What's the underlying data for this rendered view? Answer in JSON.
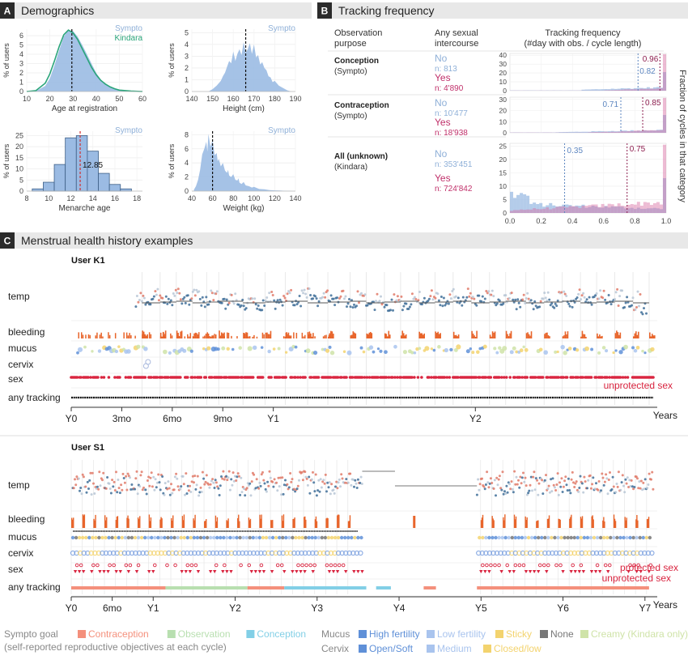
{
  "colors": {
    "sympto": "#8fb0d8",
    "kindara": "#2aa57a",
    "fill_blue": "#9bbbe3",
    "yes": "#c0306a",
    "no": "#8fb0d8",
    "bleed": "#e8652b",
    "temp_dark": "#3f6f99",
    "temp_light": "#b9c7d6",
    "temp_red": "#e07a68",
    "sex": "#d9243f",
    "contraception": "#f4907c",
    "observation": "#b8dfb0",
    "conception": "#82cfe6",
    "high_fertility": "#5f90d8",
    "low_fertility": "#a9c4ee",
    "sticky": "#f3d36e",
    "none": "#777777",
    "creamy": "#cfe3a8"
  },
  "panel_a": {
    "letter": "A",
    "title": "Demographics",
    "charts": [
      {
        "type": "area",
        "legend": [
          "Sympto",
          "Kindara"
        ],
        "xlabel": "Age at registration",
        "ylabel": "% of users",
        "xticks": [
          "10",
          "20",
          "30",
          "40",
          "50",
          "60"
        ],
        "yticks": [
          "0",
          "1",
          "2",
          "3",
          "4",
          "5",
          "6"
        ],
        "xlim": [
          10,
          60
        ],
        "ylim": [
          0,
          6.7
        ],
        "mean_line": 29.5,
        "series": [
          {
            "name": "Sympto",
            "x": [
              10,
              14,
              18,
              20,
              22,
              24,
              26,
              28,
              30,
              32,
              34,
              36,
              38,
              40,
              42,
              44,
              46,
              48,
              50,
              55,
              60
            ],
            "values": [
              0,
              0.05,
              0.6,
              1.4,
              2.8,
              4.4,
              5.9,
              6.6,
              6.5,
              5.9,
              5.0,
              4.0,
              3.0,
              2.0,
              1.3,
              0.8,
              0.5,
              0.3,
              0.15,
              0.05,
              0
            ]
          },
          {
            "name": "Kindara",
            "x": [
              10,
              14,
              18,
              20,
              22,
              24,
              26,
              28,
              30,
              32,
              34,
              36,
              38,
              40,
              42,
              44,
              46,
              48,
              50,
              55,
              60
            ],
            "values": [
              0,
              0.1,
              0.9,
              1.9,
              3.3,
              4.8,
              6.1,
              6.6,
              6.3,
              5.6,
              4.6,
              3.6,
              2.6,
              1.8,
              1.2,
              0.8,
              0.5,
              0.3,
              0.15,
              0.05,
              0
            ]
          }
        ]
      },
      {
        "type": "area",
        "legend": [
          "Sympto"
        ],
        "xlabel": "Height (cm)",
        "ylabel": "% of users",
        "xticks": [
          "140",
          "150",
          "160",
          "170",
          "180",
          "190"
        ],
        "yticks": [
          "0",
          "1",
          "2",
          "3",
          "4",
          "5"
        ],
        "xlim": [
          140,
          190
        ],
        "ylim": [
          0,
          5.3
        ],
        "mean_line": 166,
        "series": [
          {
            "name": "Sympto",
            "x": [
              148,
              150,
              152,
              154,
              155,
              156,
              157,
              158,
              159,
              160,
              161,
              162,
              163,
              164,
              165,
              166,
              167,
              168,
              169,
              170,
              171,
              172,
              173,
              174,
              175,
              176,
              177,
              178,
              179,
              180,
              182,
              184,
              186,
              188
            ],
            "values": [
              0,
              0.2,
              0.5,
              0.9,
              1.3,
              1.6,
              2.1,
              2.6,
              2.4,
              3.4,
              2.6,
              3.2,
              3.6,
              3.1,
              4.2,
              3.3,
              3.6,
              4.1,
              3.2,
              4.0,
              2.9,
              3.1,
              2.3,
              2.5,
              2.0,
              1.8,
              1.3,
              1.2,
              0.8,
              0.9,
              0.5,
              0.3,
              0.1,
              0
            ]
          }
        ]
      },
      {
        "type": "bar",
        "legend": [
          "Sympto"
        ],
        "xlabel": "Menarche age",
        "ylabel": "% of users",
        "xticks": [
          "8",
          "10",
          "12",
          "14",
          "16",
          "18"
        ],
        "yticks": [
          "0",
          "5",
          "10",
          "15",
          "20",
          "25"
        ],
        "xlim": [
          8,
          18.5
        ],
        "ylim": [
          0,
          27
        ],
        "mean_line": 12.85,
        "mean_label": "12.85",
        "categories": [
          "9",
          "10",
          "11",
          "12",
          "13",
          "14",
          "15",
          "16",
          "17"
        ],
        "values": [
          1,
          4,
          12,
          24,
          25,
          18,
          8,
          3,
          1
        ]
      },
      {
        "type": "area",
        "legend": [
          "Sympto"
        ],
        "xlabel": "Weight (kg)",
        "ylabel": "% of users",
        "xticks": [
          "40",
          "60",
          "80",
          "100",
          "120",
          "140"
        ],
        "yticks": [
          "0",
          "2",
          "4",
          "6",
          "8"
        ],
        "xlim": [
          40,
          140
        ],
        "ylim": [
          0,
          8.5
        ],
        "mean_line": 60,
        "series": [
          {
            "name": "Sympto",
            "x": [
              42,
              44,
              46,
              48,
              50,
              52,
              54,
              55,
              56,
              58,
              60,
              62,
              64,
              65,
              66,
              68,
              70,
              72,
              74,
              75,
              76,
              78,
              80,
              82,
              84,
              85,
              86,
              88,
              90,
              92,
              95,
              98,
              100,
              105,
              110,
              115,
              120,
              125,
              130,
              135,
              140
            ],
            "values": [
              0.2,
              0.7,
              1.6,
              3.0,
              5.2,
              6.0,
              7.0,
              5.6,
              8.1,
              6.3,
              7.2,
              5.1,
              5.4,
              4.2,
              4.6,
              3.5,
              4.0,
              2.9,
              2.6,
              3.0,
              2.2,
              2.0,
              2.4,
              1.6,
              1.5,
              1.8,
              1.2,
              1.0,
              1.3,
              0.8,
              0.7,
              0.5,
              0.6,
              0.3,
              0.25,
              0.15,
              0.1,
              0.08,
              0.05,
              0.03,
              0
            ]
          }
        ]
      }
    ]
  },
  "panel_b": {
    "letter": "B",
    "title": "Tracking frequency",
    "col_purpose": [
      "Observation",
      "purpose"
    ],
    "col_sex": [
      "Any sexual",
      "intercourse"
    ],
    "col_freq": [
      "Tracking frequency",
      "(#day with obs. / cycle length)"
    ],
    "right_label": "Fraction of cycles in that category",
    "xticks": [
      "0.0",
      "0.2",
      "0.4",
      "0.6",
      "0.8",
      "1.0"
    ],
    "rows": [
      {
        "name": "Conception",
        "app": "(Sympto)",
        "no": "No",
        "no_n": "n: 813",
        "yes": "Yes",
        "yes_n": "n: 4'890",
        "yticks": [
          "0",
          "10",
          "20",
          "30",
          "40"
        ],
        "ymax": 42,
        "no_median": 0.82,
        "yes_median": 0.96,
        "no_label": "0.82",
        "yes_label": "0.96"
      },
      {
        "name": "Contraception",
        "app": "(Sympto)",
        "no": "No",
        "no_n": "n: 10'477",
        "yes": "Yes",
        "yes_n": "n: 18'938",
        "yticks": [
          "0",
          "10",
          "20",
          "30"
        ],
        "ymax": 32,
        "no_median": 0.71,
        "yes_median": 0.85,
        "no_label": "0.71",
        "yes_label": "0.85"
      },
      {
        "name": "All (unknown)",
        "app": "(Kindara)",
        "no": "No",
        "no_n": "n: 353'451",
        "yes": "Yes",
        "yes_n": "n: 724'842",
        "yticks": [
          "0",
          "5",
          "10",
          "15",
          "20",
          "25"
        ],
        "ymax": 26,
        "no_median": 0.35,
        "yes_median": 0.75,
        "no_label": "0.35",
        "yes_label": "0.75"
      }
    ]
  },
  "panel_c": {
    "letter": "C",
    "title": "Menstrual health history examples",
    "years_label": "Years",
    "users": [
      {
        "name": "User K1",
        "rows": [
          "temp",
          "bleeding",
          "mucus",
          "cervix",
          "sex",
          "any tracking"
        ],
        "time_labels": [
          "Y0",
          "3mo",
          "6mo",
          "9mo",
          "Y1",
          "Y2"
        ],
        "time_label_values": [
          0,
          0.25,
          0.5,
          0.75,
          1.0,
          2.0
        ],
        "max_years": 2.9,
        "cycle_starts": [
          0.35,
          0.44,
          0.52,
          0.6,
          0.67,
          0.73,
          0.85,
          0.96,
          1.06,
          1.17,
          1.27,
          1.38,
          1.46,
          1.55,
          1.63,
          1.72,
          1.8,
          1.89,
          1.98,
          2.07,
          2.15,
          2.25,
          2.34,
          2.43,
          2.52,
          2.6,
          2.69,
          2.78,
          2.86
        ],
        "annotations": [
          "unprotected sex"
        ]
      },
      {
        "name": "User S1",
        "rows": [
          "temp",
          "bleeding",
          "mucus",
          "cervix",
          "sex",
          "any tracking"
        ],
        "time_labels": [
          "Y0",
          "6mo",
          "Y1",
          "Y2",
          "Y3",
          "Y4",
          "Y5",
          "Y6",
          "Y7"
        ],
        "time_label_values": [
          0,
          0.5,
          1,
          2,
          3,
          4,
          5,
          6,
          7
        ],
        "max_years": 7.15,
        "gap": [
          3.95,
          4.85
        ],
        "annotations": [
          "protected sex",
          "unprotected sex"
        ]
      }
    ]
  },
  "legend": {
    "sympto_goal": "Sympto goal",
    "goals": [
      "Contraception",
      "Observation",
      "Conception"
    ],
    "goal_note": "(self-reported reproductive objectives at each cycle)",
    "mucus_label": "Mucus",
    "mucus_items": [
      "High fertility",
      "Low fertility",
      "Sticky",
      "None",
      "Creamy (Kindara only)"
    ],
    "cervix_label": "Cervix",
    "cervix_items": [
      "Open/Soft",
      "Medium",
      "Closed/low"
    ]
  }
}
